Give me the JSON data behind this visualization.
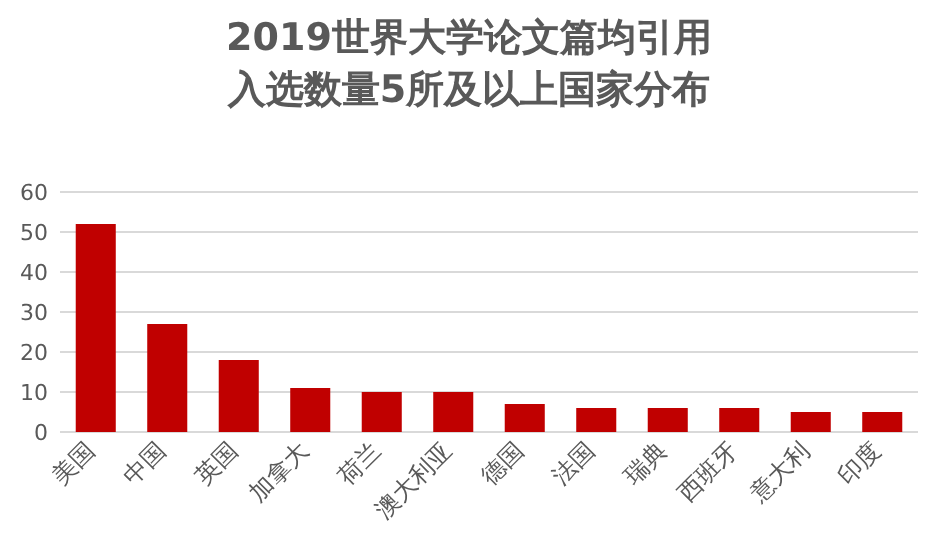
{
  "chart_data": {
    "type": "bar",
    "title": "2019世界大学论文篇均引用入选数量5所及以上国家分布",
    "categories": [
      "美国",
      "中国",
      "英国",
      "加拿大",
      "荷兰",
      "澳大利亚",
      "德国",
      "法国",
      "瑞典",
      "西班牙",
      "意大利",
      "印度"
    ],
    "values": [
      52,
      27,
      18,
      11,
      10,
      10,
      7,
      6,
      6,
      6,
      5,
      5
    ],
    "color": "#c00000",
    "ylim": [
      0,
      60
    ],
    "yticks": [
      0,
      10,
      20,
      30,
      40,
      50,
      60
    ],
    "grid": "y"
  }
}
